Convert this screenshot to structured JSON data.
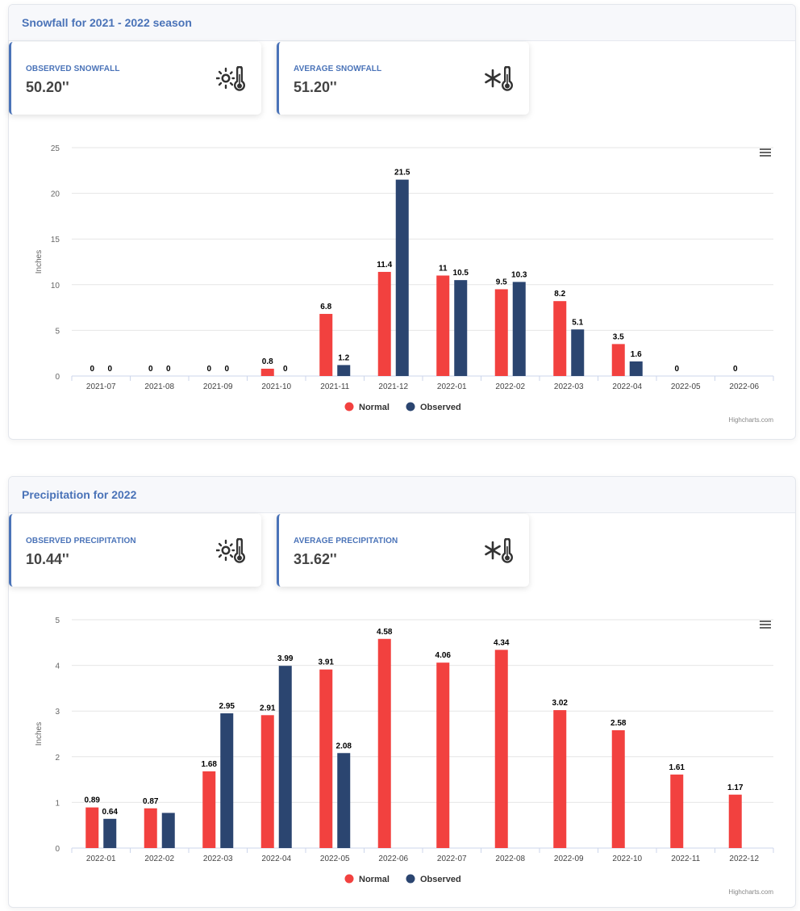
{
  "snowfall": {
    "title": "Snowfall for 2021 - 2022 season",
    "cards": [
      {
        "label": "OBSERVED SNOWFALL",
        "value": "50.20''",
        "icon": "sun-thermometer-icon"
      },
      {
        "label": "AVERAGE SNOWFALL",
        "value": "51.20''",
        "icon": "snowflake-thermometer-icon"
      }
    ],
    "credits": "Highcharts.com",
    "chart_data": {
      "type": "bar",
      "title": "",
      "xlabel": "",
      "ylabel": "Inches",
      "ylim": [
        0,
        25
      ],
      "yticks": [
        0,
        5,
        10,
        15,
        20,
        25
      ],
      "categories": [
        "2021-07",
        "2021-08",
        "2021-09",
        "2021-10",
        "2021-11",
        "2021-12",
        "2022-01",
        "2022-02",
        "2022-03",
        "2022-04",
        "2022-05",
        "2022-06"
      ],
      "series": [
        {
          "name": "Normal",
          "color": "#f2413f",
          "values": [
            0,
            0,
            0,
            0.8,
            6.8,
            11.4,
            11,
            9.5,
            8.2,
            3.5,
            0,
            0
          ]
        },
        {
          "name": "Observed",
          "color": "#2b4570",
          "values": [
            0,
            0,
            0,
            0,
            1.2,
            21.5,
            10.5,
            10.3,
            5.1,
            1.6,
            null,
            null
          ]
        }
      ],
      "legend": [
        "Normal",
        "Observed"
      ],
      "legend_position": "bottom-center"
    }
  },
  "precipitation": {
    "title": "Precipitation for 2022",
    "cards": [
      {
        "label": "OBSERVED PRECIPITATION",
        "value": "10.44''",
        "icon": "sun-thermometer-icon"
      },
      {
        "label": "AVERAGE PRECIPITATION",
        "value": "31.62''",
        "icon": "snowflake-thermometer-icon"
      }
    ],
    "credits": "Highcharts.com",
    "chart_data": {
      "type": "bar",
      "title": "",
      "xlabel": "",
      "ylabel": "Inches",
      "ylim": [
        0,
        5
      ],
      "yticks": [
        0,
        1,
        2,
        3,
        4,
        5
      ],
      "categories": [
        "2022-01",
        "2022-02",
        "2022-03",
        "2022-04",
        "2022-05",
        "2022-06",
        "2022-07",
        "2022-08",
        "2022-09",
        "2022-10",
        "2022-11",
        "2022-12"
      ],
      "series": [
        {
          "name": "Normal",
          "color": "#f2413f",
          "values": [
            0.89,
            0.87,
            1.68,
            2.91,
            3.91,
            4.58,
            4.06,
            4.34,
            3.02,
            2.58,
            1.61,
            1.17
          ]
        },
        {
          "name": "Observed",
          "color": "#2b4570",
          "values": [
            0.64,
            0.77,
            2.95,
            3.99,
            2.08,
            null,
            null,
            null,
            null,
            null,
            null,
            null
          ]
        }
      ],
      "hidden_labels": [
        [
          false,
          false
        ],
        [
          false,
          true
        ],
        [
          false,
          false
        ],
        [
          false,
          false
        ],
        [
          false,
          false
        ],
        [
          false,
          false
        ],
        [
          false,
          false
        ],
        [
          false,
          false
        ],
        [
          false,
          false
        ],
        [
          false,
          false
        ],
        [
          false,
          false
        ],
        [
          false,
          false
        ]
      ],
      "legend": [
        "Normal",
        "Observed"
      ],
      "legend_position": "bottom-center"
    }
  }
}
